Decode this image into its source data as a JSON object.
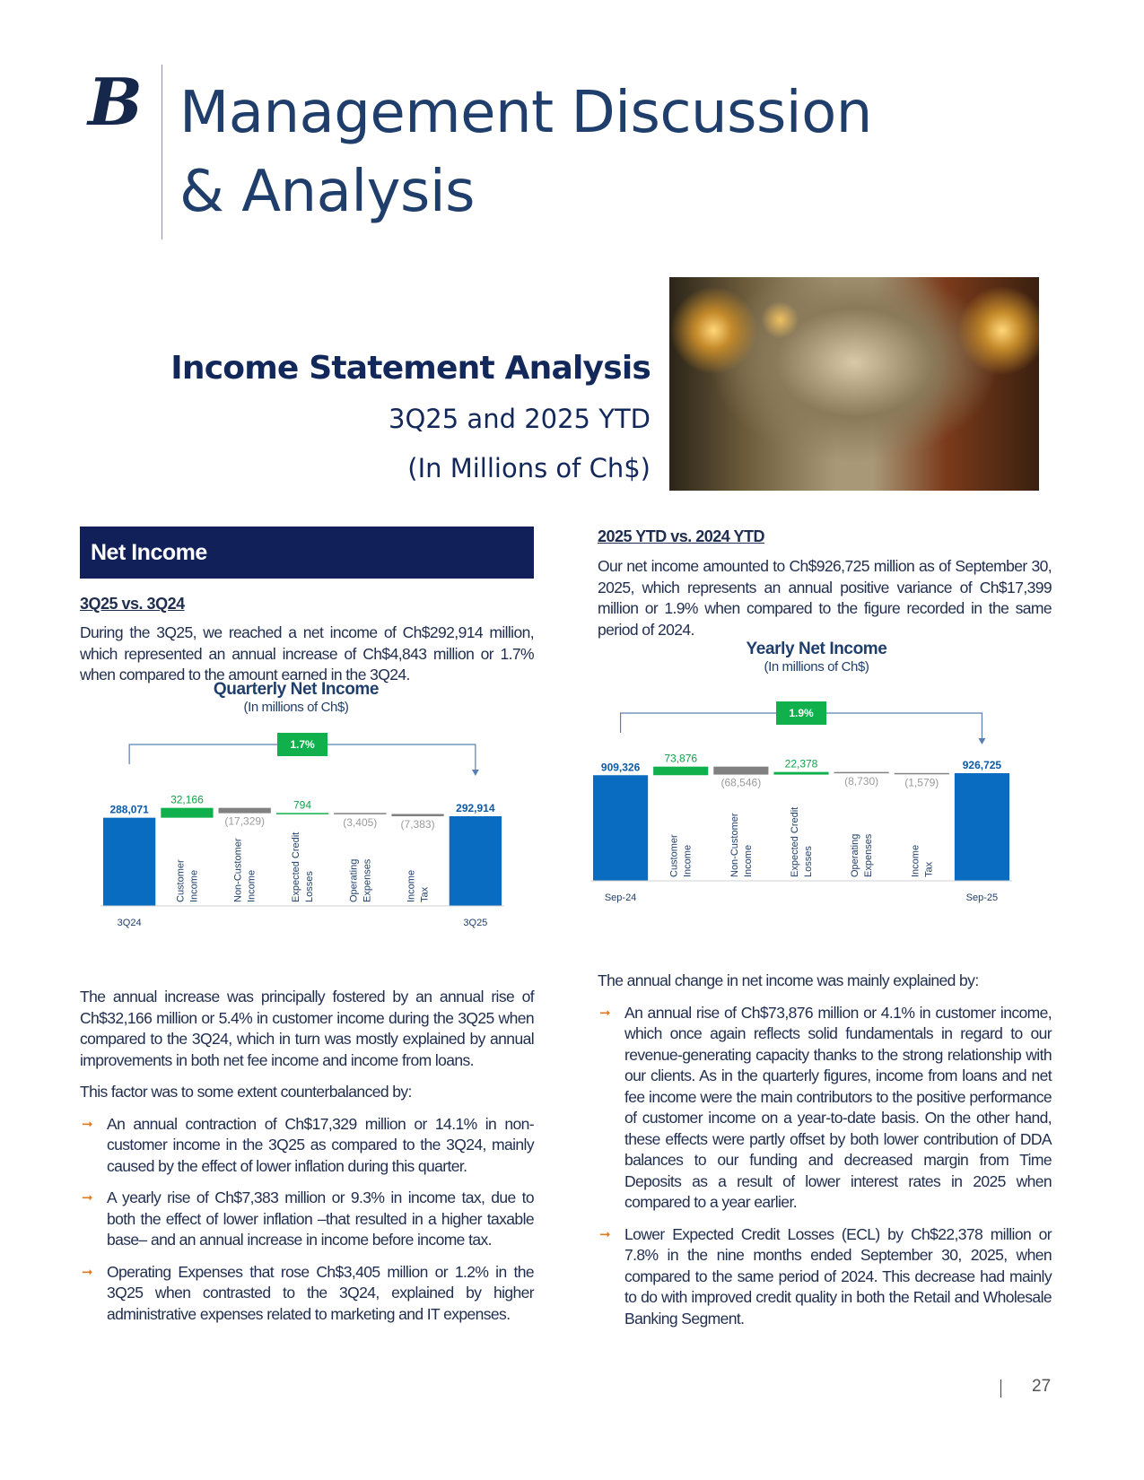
{
  "header": {
    "logo": "B",
    "title_line1": "Management Discussion",
    "title_line2": "& Analysis"
  },
  "section": {
    "title": "Income Statement Analysis",
    "subtitle1": "3Q25 and 2025 YTD",
    "subtitle2": "(In Millions of Ch$)"
  },
  "left": {
    "banner": "Net Income",
    "heading": "3Q25 vs. 3Q24",
    "intro": "During the 3Q25, we reached a net income of Ch$292,914 million, which represented an annual increase of Ch$4,843 million or 1.7% when compared to the amount earned in the 3Q24.",
    "para1": "The annual increase was principally fostered by an annual rise of Ch$32,166 million or 5.4% in customer income during the 3Q25 when compared to the 3Q24, which in turn was mostly explained by annual improvements in both net fee income and income from loans.",
    "para2": "This factor was to some extent counterbalanced by:",
    "bullets": [
      "An annual contraction of Ch$17,329 million or 14.1% in non-customer income in the 3Q25 as compared to the 3Q24, mainly caused by the effect of lower inflation during this quarter.",
      "A yearly rise of Ch$7,383 million or 9.3% in income tax, due to both the effect of lower inflation –that resulted in a higher taxable base– and an annual increase in income before income tax.",
      "Operating Expenses that rose Ch$3,405 million or 1.2% in the 3Q25 when contrasted to the 3Q24, explained by higher administrative expenses related to marketing and IT expenses."
    ]
  },
  "right": {
    "heading": "2025 YTD vs. 2024 YTD",
    "intro": "Our net income amounted to Ch$926,725 million as of September 30, 2025, which represents an annual positive variance of Ch$17,399 million or 1.9% when compared to the figure recorded in the same period of 2024.",
    "para1": "The annual change in net income was mainly explained by:",
    "bullets": [
      "An annual rise of Ch$73,876 million or 4.1% in customer income, which once again reflects solid fundamentals in regard to our revenue-generating capacity thanks to the strong relationship with our clients. As in the quarterly figures, income from loans and net fee income were the main contributors to the positive performance of customer income on a year-to-date basis. On the other hand, these effects were partly offset by both lower contribution of DDA balances to our funding and decreased margin from Time Deposits as a result of lower interest rates in 2025 when compared to a year earlier.",
      "Lower Expected Credit Losses (ECL) by Ch$22,378 million or 7.8% in the nine months ended September 30, 2025, when compared to the same period of 2024. This decrease had mainly to do with improved credit quality in both the Retail and Wholesale Banking Segment."
    ]
  },
  "page_number": "27",
  "colors": {
    "total": "#0a6cc0",
    "increase": "#10b04c",
    "decrease": "#808080",
    "bracket": "#5b7fb0",
    "bullet_arrow": "#e07a1f"
  },
  "chart_data": [
    {
      "type": "bar",
      "subtype": "waterfall",
      "title": "Quarterly Net Income",
      "subtitle": "(In millions of Ch$)",
      "change_badge": "1.7%",
      "x_start_label": "3Q24",
      "x_end_label": "3Q25",
      "categories": [
        "",
        "Customer Income",
        "Non-Customer Income",
        "Expected Credit Losses",
        "Operating Expenses",
        "Income Tax",
        ""
      ],
      "values": [
        288071,
        32166,
        -17329,
        794,
        -3405,
        -7383,
        292914
      ],
      "labels": [
        "288,071",
        "32,166",
        "(17,329)",
        "794",
        "(3,405)",
        "(7,383)",
        "292,914"
      ],
      "kinds": [
        "total",
        "increase",
        "decrease",
        "increase",
        "decrease",
        "decrease",
        "total"
      ]
    },
    {
      "type": "bar",
      "subtype": "waterfall",
      "title": "Yearly Net Income",
      "subtitle": "(In millions of Ch$)",
      "change_badge": "1.9%",
      "x_start_label": "Sep-24",
      "x_end_label": "Sep-25",
      "categories": [
        "",
        "Customer Income",
        "Non-Customer Income",
        "Expected Credit Losses",
        "Operating Expenses",
        "Income Tax",
        ""
      ],
      "values": [
        909326,
        73876,
        -68546,
        22378,
        -8730,
        -1579,
        926725
      ],
      "labels": [
        "909,326",
        "73,876",
        "(68,546)",
        "22,378",
        "(8,730)",
        "(1,579)",
        "926,725"
      ],
      "kinds": [
        "total",
        "increase",
        "decrease",
        "increase",
        "decrease",
        "decrease",
        "total"
      ]
    }
  ]
}
